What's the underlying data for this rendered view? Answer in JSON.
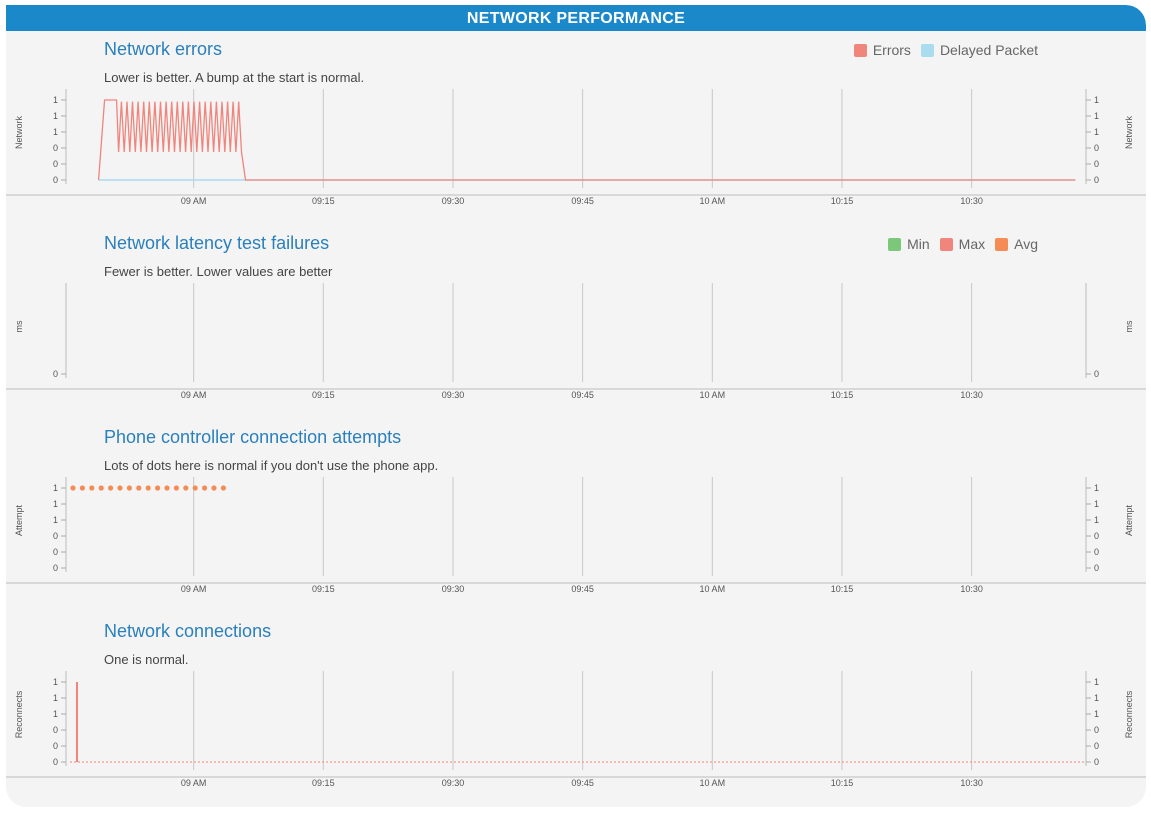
{
  "header": {
    "title": "NETWORK PERFORMANCE"
  },
  "colors": {
    "accent": "#1a88c9",
    "errors": "#f0857c",
    "delayed": "#a8dcee",
    "min": "#7cc87a",
    "max": "#f0857c",
    "avg": "#f58c55",
    "attempts": "#f58c55",
    "reconnects": "#f0857c"
  },
  "chart_data": [
    {
      "type": "line",
      "title": "Network errors",
      "subtitle": "Lower is better. A bump at the start is normal.",
      "ylabel": "Network",
      "yticks": [
        "1",
        "1",
        "1",
        "0",
        "0",
        "0"
      ],
      "xticks": [
        "09 AM",
        "09:15",
        "09:30",
        "09:45",
        "10 AM",
        "10:15",
        "10:30"
      ],
      "xlim": [
        "08:49",
        "10:42"
      ],
      "legend": [
        {
          "label": "Errors",
          "color": "#f0857c"
        },
        {
          "label": "Delayed Packet",
          "color": "#a8dcee"
        }
      ],
      "legend_position": "top-right",
      "grid": true,
      "series": [
        {
          "name": "Errors",
          "color": "#f0857c",
          "x": [
            "08:49",
            "08:50",
            "08:51",
            "08:52",
            "08:53",
            "08:54",
            "08:55",
            "08:56",
            "08:57",
            "08:58",
            "08:59",
            "09:00",
            "09:01",
            "09:02",
            "09:03",
            "09:04",
            "09:05",
            "09:06"
          ],
          "y": [
            0,
            1,
            1,
            0.7,
            0.7,
            0.7,
            0.7,
            0.7,
            0.7,
            0.7,
            0.7,
            0.7,
            0.7,
            0.7,
            0.7,
            0.7,
            0.7,
            0
          ]
        },
        {
          "name": "Delayed Packet",
          "color": "#a8dcee",
          "x": [
            "08:49",
            "10:42"
          ],
          "y": [
            0,
            0
          ]
        }
      ]
    },
    {
      "type": "line",
      "title": "Network latency test failures",
      "subtitle": "Fewer is better. Lower values are better",
      "ylabel": "ms",
      "yticks": [
        "0"
      ],
      "xticks": [
        "09 AM",
        "09:15",
        "09:30",
        "09:45",
        "10 AM",
        "10:15",
        "10:30"
      ],
      "legend": [
        {
          "label": "Min",
          "color": "#7cc87a"
        },
        {
          "label": "Max",
          "color": "#f0857c"
        },
        {
          "label": "Avg",
          "color": "#f58c55"
        }
      ],
      "legend_position": "top-right",
      "grid": true,
      "series": []
    },
    {
      "type": "scatter",
      "title": "Phone controller connection attempts",
      "subtitle": "Lots of dots here is normal if you don't use the phone app.",
      "ylabel": "Attempt",
      "yticks": [
        "1",
        "1",
        "1",
        "0",
        "0",
        "0"
      ],
      "xticks": [
        "09 AM",
        "09:15",
        "09:30",
        "09:45",
        "10 AM",
        "10:15",
        "10:30"
      ],
      "grid": true,
      "series": [
        {
          "color": "#f58c55",
          "x": [
            "08:50",
            "08:51",
            "08:52",
            "08:53",
            "08:54",
            "08:55",
            "08:56",
            "08:57",
            "08:58",
            "08:59",
            "09:00",
            "09:01",
            "09:02",
            "09:03",
            "09:04",
            "09:05",
            "09:06"
          ],
          "y": [
            1,
            1,
            1,
            1,
            1,
            1,
            1,
            1,
            1,
            1,
            1,
            1,
            1,
            1,
            1,
            1,
            1
          ]
        }
      ]
    },
    {
      "type": "bar",
      "title": "Network connections",
      "subtitle": "One is normal.",
      "ylabel": "Reconnects",
      "yticks": [
        "1",
        "1",
        "1",
        "0",
        "0",
        "0"
      ],
      "xticks": [
        "09 AM",
        "09:15",
        "09:30",
        "09:45",
        "10 AM",
        "10:15",
        "10:30"
      ],
      "grid": true,
      "series": [
        {
          "color": "#f0857c",
          "x": [
            "08:50"
          ],
          "y": [
            1
          ]
        }
      ]
    }
  ]
}
